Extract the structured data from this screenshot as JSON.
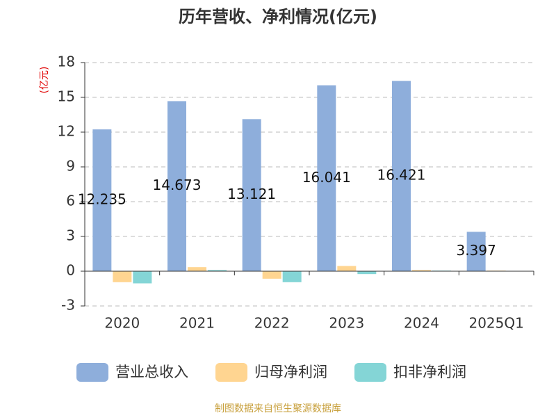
{
  "chart_data": {
    "type": "bar",
    "title": "历年营收、净利情况(亿元)",
    "y_label": "(亿元)",
    "categories": [
      "2020",
      "2021",
      "2022",
      "2023",
      "2024",
      "2025Q1"
    ],
    "series": [
      {
        "name": "营业总收入",
        "color": "#8eaedb",
        "values": [
          12.235,
          14.673,
          13.121,
          16.041,
          16.421,
          3.397
        ],
        "show_labels": true
      },
      {
        "name": "归母净利润",
        "color": "#ffd591",
        "values": [
          -0.95,
          0.35,
          -0.65,
          0.45,
          0.1,
          0.05
        ]
      },
      {
        "name": "扣非净利润",
        "color": "#84d5d6",
        "values": [
          -1.05,
          0.1,
          -0.95,
          -0.25,
          0.05,
          0.03
        ]
      }
    ],
    "ylim": [
      -3,
      18
    ],
    "yticks": [
      -3,
      0,
      3,
      6,
      9,
      12,
      15,
      18
    ],
    "grid": true,
    "legend": "bottom",
    "source": "制图数据来自恒生聚源数据库"
  }
}
